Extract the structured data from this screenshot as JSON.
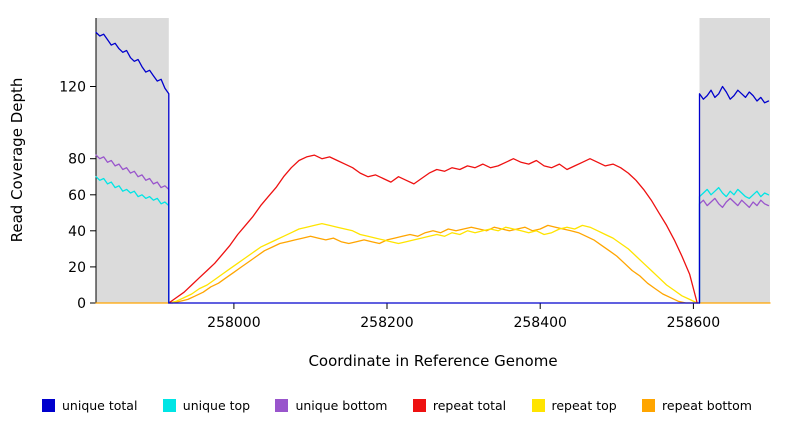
{
  "legend": {
    "items": [
      {
        "label": "unique total",
        "color": "#0000CD"
      },
      {
        "label": "unique top",
        "color": "#00E5E5"
      },
      {
        "label": "unique bottom",
        "color": "#9955CC"
      },
      {
        "label": "repeat total",
        "color": "#EE1111"
      },
      {
        "label": "repeat top",
        "color": "#FFE400"
      },
      {
        "label": "repeat bottom",
        "color": "#FFA500"
      }
    ]
  },
  "chart_data": {
    "type": "line",
    "title": "",
    "xlabel": "Coordinate in Reference Genome",
    "ylabel": "Read Coverage Depth",
    "xlim": [
      257820,
      258700
    ],
    "ylim": [
      0,
      158
    ],
    "x_ticks": [
      258000,
      258200,
      258400,
      258600
    ],
    "y_ticks": [
      0,
      20,
      40,
      60,
      80,
      120
    ],
    "grid": false,
    "legend_position": "bottom",
    "shaded_regions": [
      {
        "x0": 257820,
        "x1": 257915,
        "color": "#dbdbdb"
      },
      {
        "x0": 258608,
        "x1": 258700,
        "color": "#dbdbdb"
      }
    ],
    "series": [
      {
        "name": "unique total",
        "color": "#0000CD",
        "segments": [
          {
            "x_start": 257820,
            "x_step": 5,
            "end_drop": true,
            "values": [
              150,
              148,
              149,
              146,
              143,
              144,
              141,
              139,
              140,
              136,
              134,
              135,
              131,
              128,
              129,
              126,
              123,
              124,
              119,
              116
            ]
          },
          {
            "x": [
              257915,
              258608
            ],
            "y": [
              0,
              0
            ]
          },
          {
            "x_start": 258608,
            "x_step": 5,
            "rise_start": true,
            "values": [
              116,
              113,
              115,
              118,
              114,
              116,
              120,
              117,
              113,
              115,
              118,
              116,
              114,
              117,
              115,
              112,
              114,
              111,
              112
            ]
          }
        ]
      },
      {
        "name": "unique top",
        "color": "#00E5E5",
        "segments": [
          {
            "x_start": 257820,
            "x_step": 5,
            "end_drop": true,
            "values": [
              70,
              68,
              69,
              66,
              67,
              64,
              65,
              62,
              63,
              61,
              62,
              59,
              60,
              58,
              59,
              57,
              58,
              55,
              56,
              54
            ]
          },
          {
            "x_start": 258608,
            "x_step": 5,
            "rise_start": true,
            "values": [
              59,
              61,
              63,
              60,
              62,
              64,
              61,
              59,
              62,
              60,
              63,
              61,
              59,
              58,
              60,
              62,
              59,
              61,
              60
            ]
          }
        ]
      },
      {
        "name": "unique bottom",
        "color": "#9955CC",
        "segments": [
          {
            "x_start": 257820,
            "x_step": 5,
            "end_drop": true,
            "values": [
              82,
              80,
              81,
              78,
              79,
              76,
              77,
              74,
              75,
              72,
              73,
              70,
              71,
              68,
              69,
              66,
              67,
              64,
              65,
              63
            ]
          },
          {
            "x_start": 258608,
            "x_step": 5,
            "rise_start": true,
            "values": [
              55,
              57,
              54,
              56,
              58,
              55,
              53,
              56,
              58,
              56,
              54,
              57,
              55,
              53,
              56,
              54,
              57,
              55,
              54
            ]
          }
        ]
      },
      {
        "name": "repeat total",
        "color": "#EE1111",
        "segments": [
          {
            "x_start": 257915,
            "x_step": 10,
            "values": [
              0,
              3,
              6,
              10,
              14,
              18,
              22,
              27,
              32,
              38,
              43,
              48,
              54,
              59,
              64,
              70,
              75,
              79,
              81,
              82,
              80,
              81,
              79,
              77,
              75,
              72,
              70,
              71,
              69,
              67,
              70,
              68,
              66,
              69,
              72,
              74,
              73,
              75,
              74,
              76,
              75,
              77,
              75,
              76,
              78,
              80,
              78,
              77,
              79,
              76,
              75,
              77,
              74,
              76,
              78,
              80,
              78,
              76,
              77,
              75,
              72,
              68,
              63,
              57,
              50,
              43,
              35,
              26,
              16,
              0
            ]
          }
        ]
      },
      {
        "name": "repeat top",
        "color": "#FFE400",
        "segments": [
          {
            "x_start": 257915,
            "x_step": 10,
            "values": [
              0,
              1,
              3,
              5,
              8,
              10,
              13,
              16,
              19,
              22,
              25,
              28,
              31,
              33,
              35,
              37,
              39,
              41,
              42,
              43,
              44,
              43,
              42,
              41,
              40,
              38,
              37,
              36,
              35,
              34,
              33,
              34,
              35,
              36,
              37,
              38,
              37,
              39,
              38,
              40,
              39,
              40,
              41,
              40,
              42,
              41,
              40,
              39,
              40,
              38,
              39,
              41,
              42,
              41,
              43,
              42,
              40,
              38,
              36,
              33,
              30,
              26,
              22,
              18,
              14,
              10,
              7,
              4,
              2,
              0
            ]
          }
        ]
      },
      {
        "name": "repeat bottom",
        "color": "#FFA500",
        "segments": [
          {
            "x_start": 257820,
            "x_step": 10,
            "values": [
              0,
              0,
              0,
              0,
              0,
              0,
              0,
              0,
              0,
              0,
              0,
              1,
              2,
              4,
              6,
              9,
              11,
              14,
              17,
              20,
              23,
              26,
              29,
              31,
              33,
              34,
              35,
              36,
              37,
              36,
              35,
              36,
              34,
              33,
              34,
              35,
              34,
              33,
              35,
              36,
              37,
              38,
              37,
              39,
              40,
              39,
              41,
              40,
              41,
              42,
              41,
              40,
              42,
              41,
              40,
              41,
              42,
              40,
              41,
              43,
              42,
              41,
              40,
              39,
              37,
              35,
              32,
              29,
              26,
              22,
              18,
              15,
              11,
              8,
              5,
              3,
              1,
              0,
              0,
              0,
              0,
              0,
              0,
              0,
              0,
              0,
              0,
              0,
              0
            ]
          }
        ]
      }
    ]
  }
}
